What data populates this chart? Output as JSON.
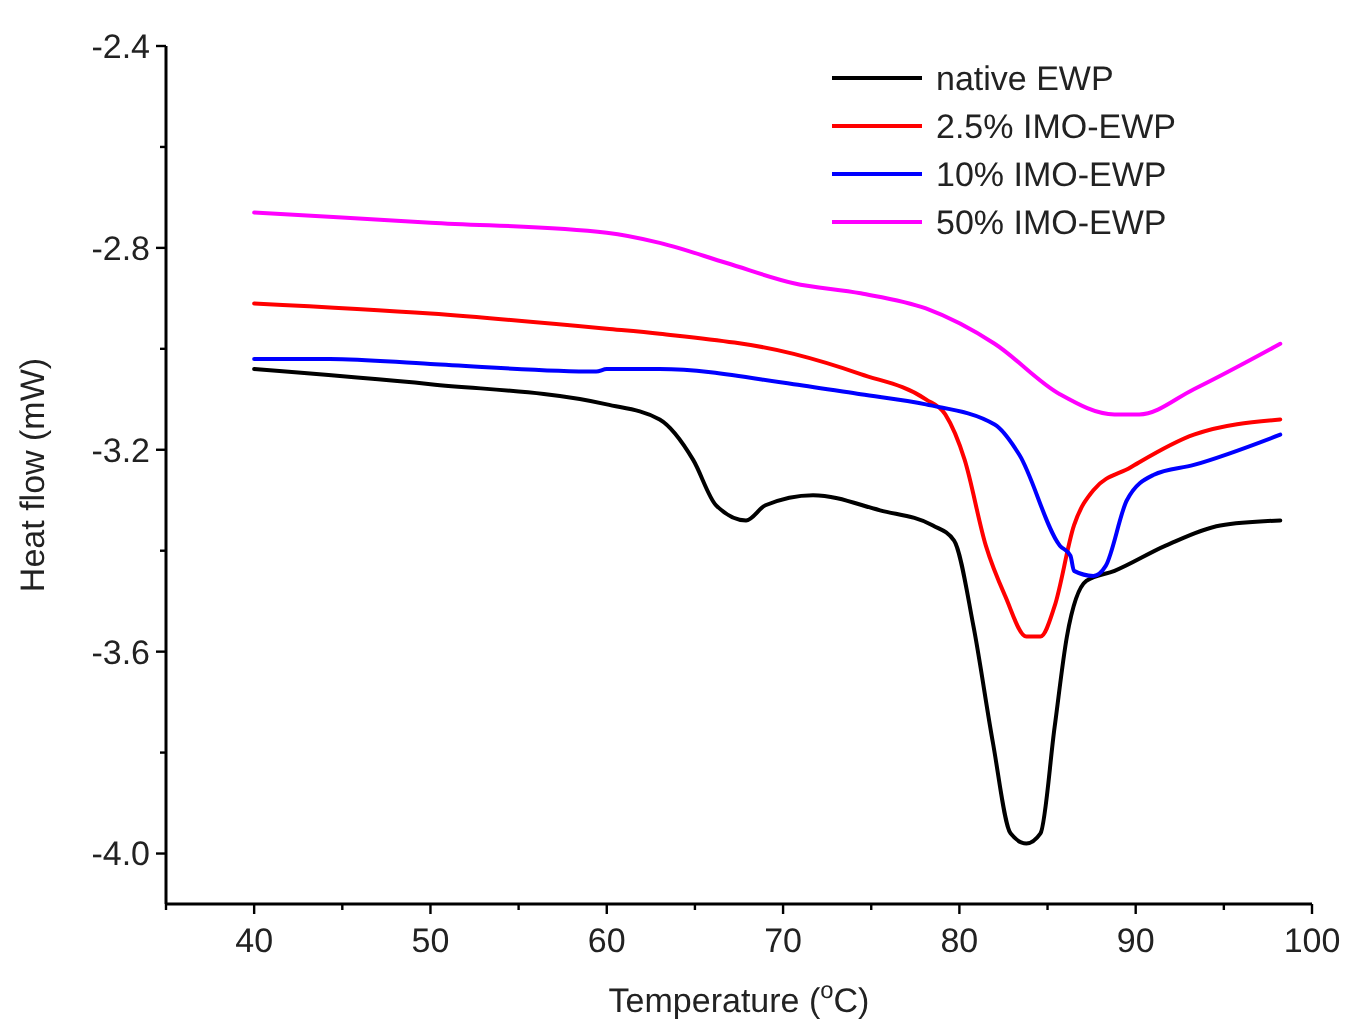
{
  "chart_data": {
    "type": "line",
    "xlabel": "Temperature ($^{o}$C)",
    "ylabel": "Heat flow (mW)",
    "xlim": [
      35,
      100
    ],
    "xticks": [
      {
        "value": 35,
        "label": null
      },
      40,
      {
        "value": 45,
        "label": null
      },
      50,
      {
        "value": 55,
        "label": null
      },
      60,
      {
        "value": 65,
        "label": null
      },
      70,
      {
        "value": 75,
        "label": null
      },
      80,
      {
        "value": 85,
        "label": null
      },
      90,
      {
        "value": 95,
        "label": null
      },
      100
    ],
    "ylim": [
      -4.1,
      -2.4
    ],
    "yticks": [
      {
        "value": -4.0,
        "label": "-4.0"
      },
      {
        "value": -3.8,
        "label": null
      },
      -3.6,
      {
        "value": -3.4,
        "label": null
      },
      -3.2,
      {
        "value": -3.0,
        "label": null
      },
      -2.8,
      {
        "value": -2.6,
        "label": null
      },
      -2.4
    ],
    "grid": false,
    "legend": "top right",
    "line_style": "solid",
    "marker": "none",
    "series": [
      {
        "name": "native EWP",
        "color": "#000000",
        "x": [
          40,
          50,
          60,
          63,
          64.9,
          66.2,
          67.9,
          69,
          71.7,
          75.5,
          78.5,
          79.7,
          80.8,
          81.9,
          82.9,
          83.8,
          84.6,
          85.4,
          86.1,
          87.2,
          88.8,
          91.7,
          94.8,
          98.2
        ],
        "values": [
          -3.04,
          -3.07,
          -3.11,
          -3.14,
          -3.22,
          -3.31,
          -3.34,
          -3.31,
          -3.29,
          -3.32,
          -3.35,
          -3.38,
          -3.55,
          -3.78,
          -3.96,
          -3.98,
          -3.96,
          -3.75,
          -3.57,
          -3.46,
          -3.44,
          -3.39,
          -3.35,
          -3.34
        ]
      },
      {
        "name": "2.5% IMO-EWP",
        "color": "#ff0000",
        "x": [
          40,
          50,
          60,
          63,
          70.6,
          74.4,
          78.1,
          79.2,
          80.3,
          81.5,
          82.6,
          83.8,
          84.6,
          85.4,
          86.5,
          87.6,
          89.7,
          93.3,
          98.2
        ],
        "values": [
          -2.91,
          -2.93,
          -2.96,
          -2.97,
          -3.01,
          -3.05,
          -3.1,
          -3.13,
          -3.22,
          -3.39,
          -3.49,
          -3.57,
          -3.57,
          -3.51,
          -3.35,
          -3.28,
          -3.235,
          -3.17,
          -3.14
        ]
      },
      {
        "name": "10% IMO-EWP",
        "color": "#0000ff",
        "x": [
          40,
          44.3,
          50,
          59.4,
          60,
          63,
          70.6,
          74.4,
          78.1,
          82,
          83.4,
          85.7,
          86.3,
          86.5,
          87.6,
          88.3,
          89.5,
          91,
          93.3,
          98.2
        ],
        "values": [
          -3.02,
          -3.02,
          -3.03,
          -3.045,
          -3.04,
          -3.04,
          -3.07,
          -3.09,
          -3.11,
          -3.15,
          -3.21,
          -3.39,
          -3.41,
          -3.44,
          -3.45,
          -3.43,
          -3.3,
          -3.25,
          -3.23,
          -3.17
        ]
      },
      {
        "name": "50% IMO-EWP",
        "color": "#ff00ff",
        "x": [
          40,
          50,
          60,
          63,
          66.8,
          70.6,
          74.4,
          78.1,
          82,
          85.7,
          88.8,
          90.2,
          93.3,
          98.2
        ],
        "values": [
          -2.73,
          -2.75,
          -2.77,
          -2.79,
          -2.83,
          -2.87,
          -2.89,
          -2.92,
          -2.99,
          -3.09,
          -3.13,
          -3.13,
          -3.08,
          -2.99
        ]
      }
    ]
  }
}
